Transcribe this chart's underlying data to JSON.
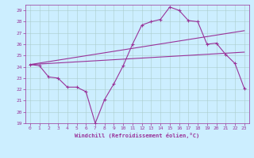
{
  "xlabel": "Windchill (Refroidissement éolien,°C)",
  "background_color": "#cceeff",
  "grid_color": "#aacccc",
  "line_color": "#993399",
  "xlim": [
    -0.5,
    23.5
  ],
  "ylim": [
    19,
    29.5
  ],
  "yticks": [
    19,
    20,
    21,
    22,
    23,
    24,
    25,
    26,
    27,
    28,
    29
  ],
  "xticks": [
    0,
    1,
    2,
    3,
    4,
    5,
    6,
    7,
    8,
    9,
    10,
    11,
    12,
    13,
    14,
    15,
    16,
    17,
    18,
    19,
    20,
    21,
    22,
    23
  ],
  "series1_x": [
    0,
    1,
    2,
    3,
    4,
    5,
    6,
    7,
    8,
    9,
    10,
    11,
    12,
    13,
    14,
    15,
    16,
    17,
    18,
    19,
    20,
    21,
    22,
    23
  ],
  "series1_y": [
    24.2,
    24.1,
    23.1,
    23.0,
    22.2,
    22.2,
    21.8,
    19.0,
    21.1,
    22.5,
    24.1,
    26.0,
    27.7,
    28.0,
    28.2,
    29.3,
    29.0,
    28.1,
    28.0,
    26.0,
    26.1,
    25.1,
    24.3,
    22.1
  ],
  "trend1_x": [
    0,
    23
  ],
  "trend1_y": [
    24.2,
    27.2
  ],
  "trend2_x": [
    0,
    23
  ],
  "trend2_y": [
    24.2,
    25.3
  ]
}
